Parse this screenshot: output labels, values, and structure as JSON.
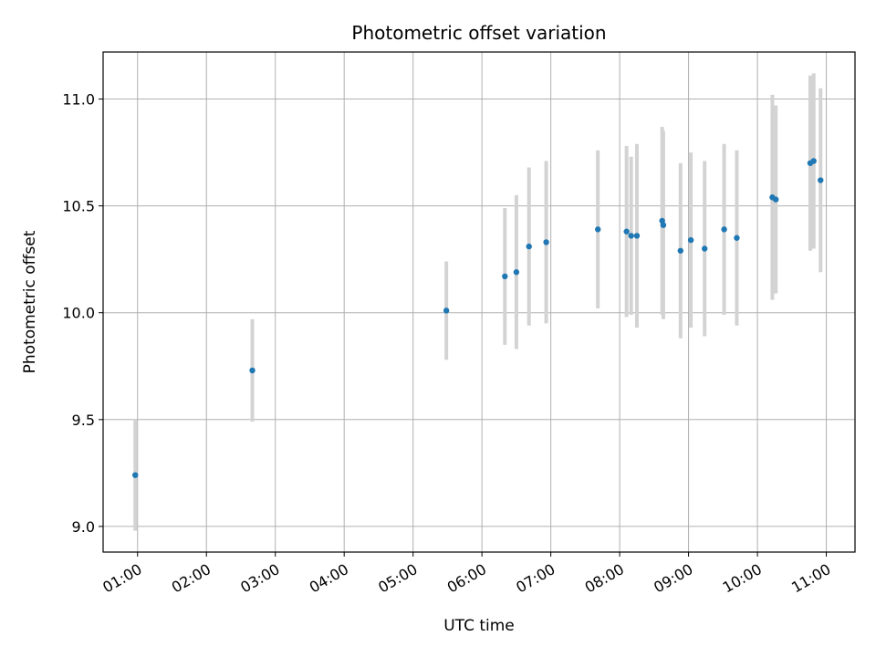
{
  "chart_data": {
    "type": "scatter",
    "title": "Photometric offset variation",
    "xlabel": "UTC time",
    "ylabel": "Photometric offset",
    "grid": true,
    "x_ticks": [
      "01:00",
      "02:00",
      "03:00",
      "04:00",
      "05:00",
      "06:00",
      "07:00",
      "08:00",
      "09:00",
      "10:00",
      "11:00"
    ],
    "y_ticks": [
      "9.0",
      "9.5",
      "10.0",
      "10.5",
      "11.0"
    ],
    "xlim": [
      "00:30",
      "11:25"
    ],
    "ylim": [
      8.88,
      11.22
    ],
    "colors": {
      "points": "#1f77b4",
      "errorbars": "#d3d3d3",
      "grid": "#b0b0b0"
    },
    "points": [
      {
        "x": "00:58",
        "y": 9.24,
        "err": 0.26
      },
      {
        "x": "02:40",
        "y": 9.73,
        "err": 0.24
      },
      {
        "x": "05:29",
        "y": 10.01,
        "err": 0.23
      },
      {
        "x": "06:20",
        "y": 10.17,
        "err": 0.32
      },
      {
        "x": "06:30",
        "y": 10.19,
        "err": 0.36
      },
      {
        "x": "06:41",
        "y": 10.31,
        "err": 0.37
      },
      {
        "x": "06:56",
        "y": 10.33,
        "err": 0.38
      },
      {
        "x": "07:41",
        "y": 10.39,
        "err": 0.37
      },
      {
        "x": "08:06",
        "y": 10.38,
        "err": 0.4
      },
      {
        "x": "08:10",
        "y": 10.36,
        "err": 0.37
      },
      {
        "x": "08:15",
        "y": 10.36,
        "err": 0.43
      },
      {
        "x": "08:37",
        "y": 10.43,
        "err": 0.44
      },
      {
        "x": "08:38",
        "y": 10.41,
        "err": 0.44
      },
      {
        "x": "08:53",
        "y": 10.29,
        "err": 0.41
      },
      {
        "x": "09:02",
        "y": 10.34,
        "err": 0.41
      },
      {
        "x": "09:14",
        "y": 10.3,
        "err": 0.41
      },
      {
        "x": "09:31",
        "y": 10.39,
        "err": 0.4
      },
      {
        "x": "09:42",
        "y": 10.35,
        "err": 0.41
      },
      {
        "x": "10:13",
        "y": 10.54,
        "err": 0.48
      },
      {
        "x": "10:16",
        "y": 10.53,
        "err": 0.44
      },
      {
        "x": "10:46",
        "y": 10.7,
        "err": 0.41
      },
      {
        "x": "10:49",
        "y": 10.71,
        "err": 0.41
      },
      {
        "x": "10:55",
        "y": 10.62,
        "err": 0.43
      }
    ]
  }
}
